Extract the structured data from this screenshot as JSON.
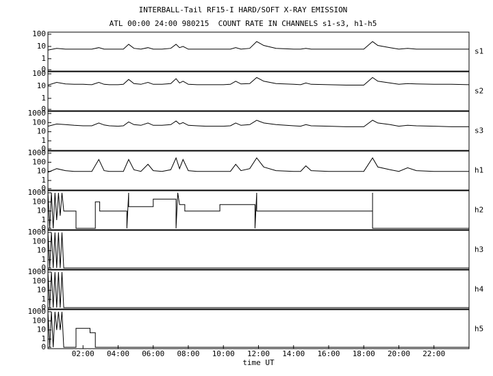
{
  "chart_data": [
    {
      "type": "line",
      "title": "INTERBALL-Tail RF15-I HARD/SOFT X-RAY EMISSION",
      "subtitle": "ATL 00:00 24:00 980215  COUNT RATE IN CHANNELS s1-s3, h1-h5",
      "label": "s1",
      "log": true,
      "color": "#000000",
      "xlim": [
        0,
        24
      ],
      "ylim": [
        0,
        100
      ],
      "yticks": [
        0,
        1,
        10,
        100
      ],
      "x": [
        0,
        0.5,
        1,
        1.5,
        2,
        2.5,
        2.9,
        3.2,
        3.5,
        4,
        4.3,
        4.6,
        4.9,
        5.3,
        5.7,
        6,
        6.5,
        7,
        7.3,
        7.5,
        7.7,
        8,
        8.5,
        9,
        9.5,
        10,
        10.4,
        10.7,
        11,
        11.5,
        11.9,
        12.3,
        13,
        14,
        14.4,
        14.7,
        15,
        16,
        17,
        18,
        18.5,
        18.8,
        19.5,
        20,
        20.5,
        21,
        22,
        23,
        24
      ],
      "values": [
        5,
        7,
        6,
        6,
        6,
        6,
        8,
        6,
        6,
        6,
        6,
        15,
        7,
        6,
        8,
        6,
        6,
        7,
        15,
        8,
        10,
        6,
        6,
        6,
        6,
        6,
        6,
        8,
        6,
        7,
        25,
        12,
        7,
        6,
        6,
        7,
        6,
        6,
        6,
        6,
        25,
        12,
        8,
        6,
        7,
        6,
        6,
        6,
        6
      ]
    },
    {
      "type": "line",
      "label": "s2",
      "log": true,
      "color": "#000000",
      "xlim": [
        0,
        24
      ],
      "ylim": [
        0,
        100
      ],
      "yticks": [
        0,
        1,
        10,
        100
      ],
      "x": [
        0,
        0.5,
        1,
        1.5,
        2,
        2.5,
        2.9,
        3.2,
        3.5,
        4,
        4.3,
        4.6,
        4.9,
        5.3,
        5.7,
        6,
        6.5,
        7,
        7.3,
        7.5,
        7.7,
        8,
        8.5,
        9,
        9.5,
        10,
        10.4,
        10.7,
        11,
        11.5,
        11.9,
        12.3,
        13,
        14,
        14.4,
        14.7,
        15,
        16,
        17,
        18,
        18.5,
        18.8,
        19.5,
        20,
        20.5,
        21,
        22,
        23,
        24
      ],
      "values": [
        12,
        20,
        15,
        14,
        14,
        13,
        20,
        14,
        13,
        13,
        14,
        35,
        16,
        14,
        20,
        14,
        14,
        16,
        40,
        18,
        25,
        14,
        13,
        13,
        13,
        13,
        14,
        25,
        15,
        16,
        50,
        25,
        16,
        14,
        13,
        18,
        14,
        13,
        12,
        12,
        50,
        25,
        18,
        14,
        16,
        15,
        14,
        14,
        13
      ]
    },
    {
      "type": "line",
      "label": "s3",
      "log": true,
      "color": "#000000",
      "xlim": [
        0,
        24
      ],
      "ylim": [
        0,
        1000
      ],
      "yticks": [
        0,
        1,
        10,
        100,
        1000
      ],
      "x": [
        0,
        0.5,
        1,
        1.5,
        2,
        2.5,
        2.9,
        3.2,
        3.5,
        4,
        4.3,
        4.6,
        4.9,
        5.3,
        5.7,
        6,
        6.5,
        7,
        7.3,
        7.5,
        7.7,
        8,
        8.5,
        9,
        9.5,
        10,
        10.4,
        10.7,
        11,
        11.5,
        11.9,
        12.3,
        13,
        14,
        14.4,
        14.7,
        15,
        16,
        17,
        18,
        18.5,
        18.8,
        19.5,
        20,
        20.5,
        21,
        22,
        23,
        24
      ],
      "values": [
        40,
        70,
        60,
        50,
        45,
        45,
        90,
        55,
        45,
        40,
        45,
        120,
        60,
        50,
        90,
        50,
        50,
        60,
        150,
        70,
        100,
        50,
        45,
        40,
        40,
        40,
        45,
        90,
        50,
        60,
        180,
        90,
        60,
        45,
        40,
        60,
        45,
        40,
        35,
        35,
        180,
        90,
        60,
        40,
        50,
        45,
        40,
        35,
        35
      ]
    },
    {
      "type": "line",
      "label": "h1",
      "log": true,
      "color": "#000000",
      "xlim": [
        0,
        24
      ],
      "ylim": [
        0,
        1000
      ],
      "yticks": [
        0,
        1,
        10,
        100,
        1000
      ],
      "x": [
        0,
        0.5,
        1,
        1.5,
        2,
        2.5,
        2.9,
        3.2,
        3.5,
        4,
        4.3,
        4.6,
        4.9,
        5.3,
        5.7,
        6,
        6.5,
        7,
        7.3,
        7.5,
        7.7,
        8,
        8.5,
        9,
        9.5,
        10,
        10.4,
        10.7,
        11,
        11.5,
        11.9,
        12.3,
        13,
        14,
        14.4,
        14.7,
        15,
        16,
        17,
        18,
        18.5,
        18.8,
        19.5,
        20,
        20.5,
        21,
        22,
        23,
        24
      ],
      "values": [
        8,
        20,
        12,
        10,
        10,
        10,
        200,
        12,
        10,
        10,
        10,
        200,
        15,
        10,
        60,
        12,
        10,
        15,
        300,
        20,
        200,
        12,
        10,
        10,
        10,
        10,
        10,
        60,
        12,
        20,
        300,
        30,
        12,
        10,
        10,
        40,
        12,
        10,
        10,
        10,
        300,
        30,
        15,
        10,
        25,
        12,
        10,
        10,
        10
      ]
    },
    {
      "type": "line",
      "label": "h2",
      "log": true,
      "color": "#000000",
      "xlim": [
        0,
        24
      ],
      "ylim": [
        0,
        1000
      ],
      "yticks": [
        0,
        1,
        10,
        100,
        1000
      ],
      "x": [
        0,
        0.1,
        0.2,
        0.3,
        0.4,
        0.5,
        0.6,
        0.7,
        0.8,
        0.9,
        1.6,
        1.6,
        2.7,
        2.7,
        2.95,
        2.95,
        4.5,
        4.5,
        4.6,
        4.6,
        6,
        6,
        7.3,
        7.3,
        7.4,
        7.5,
        7.8,
        7.8,
        9.8,
        9.8,
        11.8,
        11.8,
        11.9,
        11.9,
        18.5,
        18.5,
        18.5,
        24
      ],
      "values": [
        1000,
        0,
        1000,
        0,
        1000,
        1,
        1000,
        3,
        1000,
        10,
        10,
        0,
        0,
        100,
        100,
        10,
        10,
        0,
        1000,
        30,
        30,
        200,
        200,
        0,
        1000,
        50,
        50,
        10,
        10,
        50,
        50,
        0,
        1000,
        10,
        10,
        1000,
        0,
        0
      ]
    },
    {
      "type": "line",
      "label": "h3",
      "log": true,
      "color": "#000000",
      "xlim": [
        0,
        24
      ],
      "ylim": [
        0,
        1000
      ],
      "yticks": [
        0,
        1,
        10,
        100,
        1000
      ],
      "x": [
        0,
        0.1,
        0.2,
        0.3,
        0.4,
        0.5,
        0.6,
        0.7,
        0.8,
        0.9,
        24
      ],
      "values": [
        1000,
        0,
        1000,
        0,
        1000,
        0,
        1000,
        0,
        1000,
        0,
        0
      ]
    },
    {
      "type": "line",
      "label": "h4",
      "log": true,
      "color": "#000000",
      "xlim": [
        0,
        24
      ],
      "ylim": [
        0,
        1000
      ],
      "yticks": [
        0,
        1,
        10,
        100,
        1000
      ],
      "x": [
        0,
        0.1,
        0.2,
        0.3,
        0.4,
        0.5,
        0.6,
        0.7,
        0.8,
        0.9,
        24
      ],
      "values": [
        1000,
        0,
        1000,
        0,
        1000,
        0,
        1000,
        0,
        1000,
        0,
        0
      ]
    },
    {
      "type": "line",
      "label": "h5",
      "log": true,
      "color": "#000000",
      "xlim": [
        0,
        24
      ],
      "ylim": [
        0,
        1000
      ],
      "yticks": [
        0,
        1,
        10,
        100,
        1000
      ],
      "xlabel": "time UT",
      "xticks": [
        {
          "value": 2,
          "label": "02:00"
        },
        {
          "value": 4,
          "label": "04:00"
        },
        {
          "value": 6,
          "label": "06:00"
        },
        {
          "value": 8,
          "label": "08:00"
        },
        {
          "value": 10,
          "label": "10:00"
        },
        {
          "value": 12,
          "label": "12:00"
        },
        {
          "value": 14,
          "label": "14:00"
        },
        {
          "value": 16,
          "label": "16:00"
        },
        {
          "value": 18,
          "label": "18:00"
        },
        {
          "value": 20,
          "label": "20:00"
        },
        {
          "value": 22,
          "label": "22:00"
        }
      ],
      "x": [
        0,
        0.1,
        0.2,
        0.3,
        0.4,
        0.5,
        0.6,
        0.7,
        0.8,
        0.9,
        1.6,
        1.6,
        2.4,
        2.4,
        2.7,
        2.7,
        24
      ],
      "values": [
        1000,
        0,
        1000,
        0,
        1000,
        10,
        1000,
        10,
        1000,
        0,
        0,
        15,
        15,
        5,
        5,
        0,
        0
      ]
    }
  ]
}
